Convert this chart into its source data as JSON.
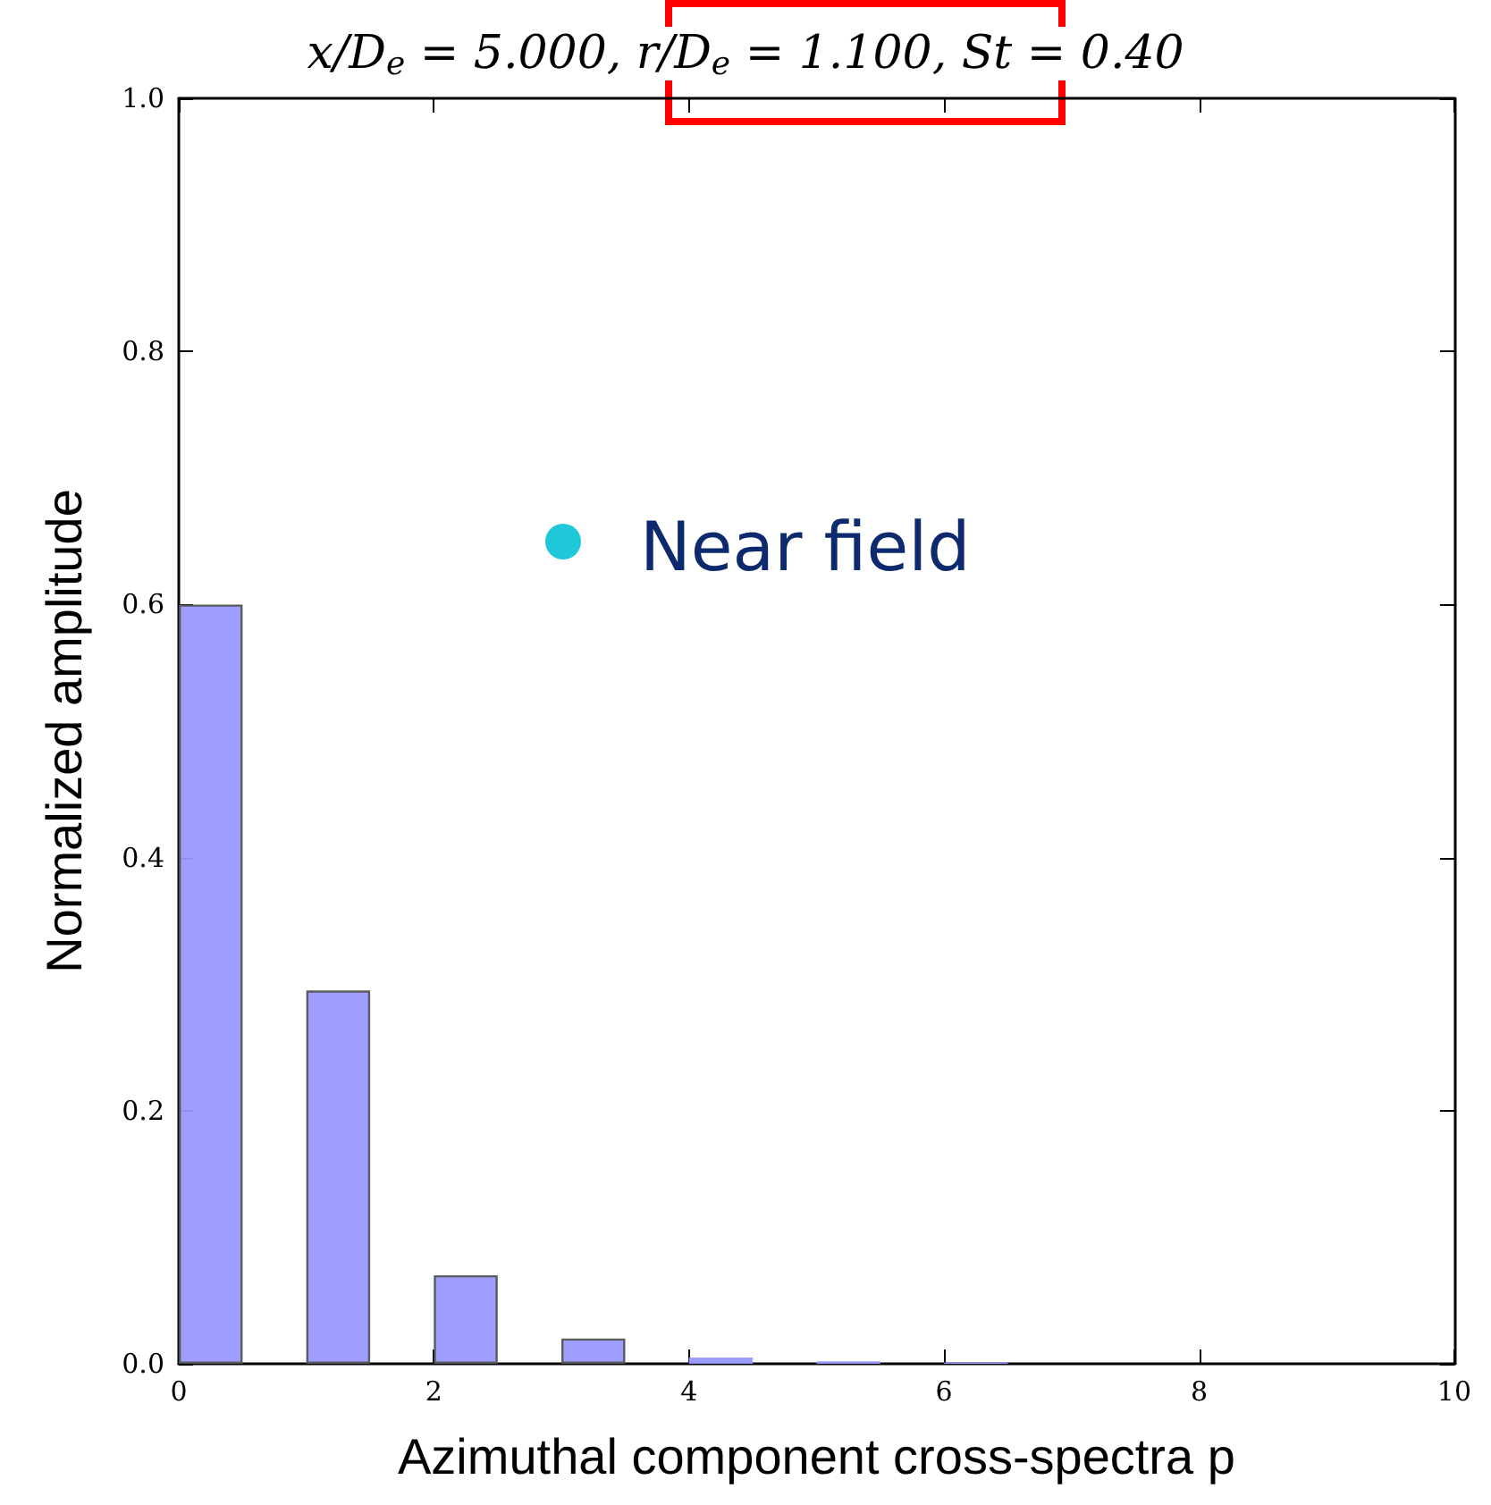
{
  "chart_data": {
    "type": "bar",
    "title": "x/D$_{e}$ = 5.000, r/D$_{e}$ = 1.100, St = 0.40",
    "xlabel": "Azimuthal component cross-spectra p",
    "ylabel": "Normalized amplitude",
    "annotations": [
      "Near field"
    ],
    "x": [
      0.25,
      1.25,
      2.25,
      3.25,
      4.25,
      5.25,
      6.25
    ],
    "values": [
      0.6,
      0.295,
      0.07,
      0.02,
      0.005,
      0.002,
      0.001
    ],
    "color": "#9999ff",
    "xlim": [
      0,
      10
    ],
    "xticks": [
      0,
      2,
      4,
      6,
      8,
      10
    ],
    "ylim": [
      0,
      1
    ],
    "yticks": [
      {
        "value": 0,
        "label": "0.0"
      },
      0.2,
      0.4,
      0.6,
      0.8,
      {
        "value": 1,
        "label": "1.0"
      }
    ]
  }
}
